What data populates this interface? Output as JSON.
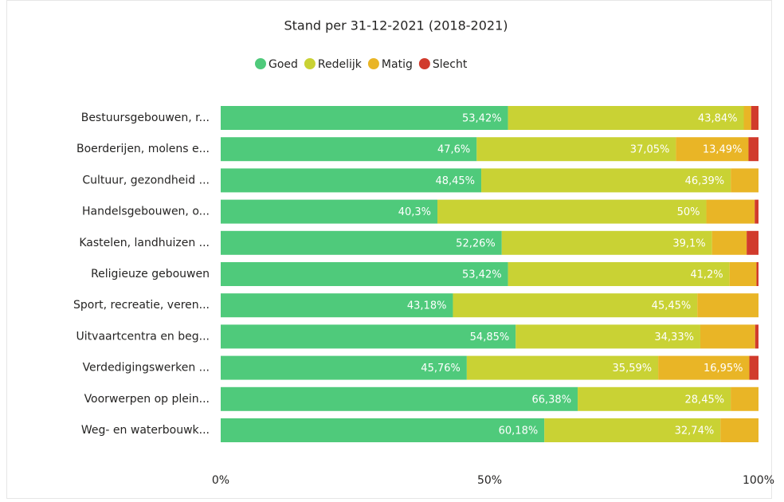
{
  "chart_data": {
    "type": "bar",
    "orientation": "horizontal",
    "stacked": true,
    "title": "Stand per 31-12-2021 (2018-2021)",
    "categories": [
      "Bestuursgebouwen, r...",
      "Boerderijen, molens e...",
      "Cultuur, gezondheid ...",
      "Handelsgebouwen, o...",
      "Kastelen, landhuizen ...",
      "Religieuze gebouwen",
      "Sport, recreatie, veren...",
      "Uitvaartcentra en beg...",
      "Verdedigingswerken ...",
      "Voorwerpen op plein...",
      "Weg- en waterbouwk..."
    ],
    "series": [
      {
        "name": "Goed",
        "color": "#4fca7b",
        "values": [
          53.42,
          47.6,
          48.45,
          40.3,
          52.26,
          53.42,
          43.18,
          54.85,
          45.76,
          66.38,
          60.18
        ],
        "value_labels": [
          "53,42%",
          "47,6%",
          "48,45%",
          "40,3%",
          "52,26%",
          "53,42%",
          "43,18%",
          "54,85%",
          "45,76%",
          "66,38%",
          "60,18%"
        ]
      },
      {
        "name": "Redelijk",
        "color": "#c9d234",
        "values": [
          43.84,
          37.05,
          46.39,
          50,
          39.1,
          41.2,
          45.45,
          34.33,
          35.59,
          28.45,
          32.74
        ],
        "value_labels": [
          "43,84%",
          "37,05%",
          "46,39%",
          "50%",
          "39,1%",
          "41,2%",
          "45,45%",
          "34,33%",
          "35,59%",
          "28,45%",
          "32,74%"
        ]
      },
      {
        "name": "Matig",
        "color": "#e9b526",
        "values": [
          1.37,
          13.49,
          5.16,
          9.0,
          6.44,
          5.0,
          11.37,
          10.2,
          16.95,
          5.17,
          7.08
        ],
        "value_labels": [
          null,
          "13,49%",
          null,
          null,
          null,
          null,
          null,
          null,
          "16,95%",
          null,
          null
        ]
      },
      {
        "name": "Slecht",
        "color": "#d13b2c",
        "values": [
          1.37,
          1.86,
          0,
          0.7,
          2.2,
          0.38,
          0,
          0.62,
          1.7,
          0,
          0
        ],
        "value_labels": [
          null,
          null,
          null,
          null,
          null,
          null,
          null,
          null,
          null,
          null,
          null
        ]
      }
    ],
    "xlim": [
      0,
      100
    ],
    "xticks": [
      {
        "value": 0,
        "label": "0%"
      },
      {
        "value": 50,
        "label": "50%"
      },
      {
        "value": 100,
        "label": "100%"
      }
    ],
    "legend": "top"
  }
}
